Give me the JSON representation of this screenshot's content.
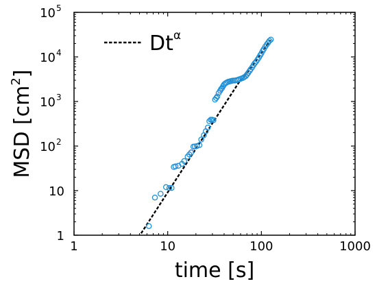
{
  "chart_data": {
    "type": "scatter",
    "xlabel": "time [s]",
    "ylabel_main": "MSD [cm",
    "ylabel_sup": "2",
    "ylabel_end": "]",
    "x_scale": "log",
    "y_scale": "log",
    "xlim": [
      1,
      1000
    ],
    "ylim": [
      1,
      100000
    ],
    "grid": false,
    "legend_placement": "top-left",
    "x_ticks": [
      {
        "value": 1,
        "label": "1"
      },
      {
        "value": 10,
        "label": "10"
      },
      {
        "value": 100,
        "label": "100"
      },
      {
        "value": 1000,
        "label": "1000"
      }
    ],
    "y_ticks": [
      {
        "value": 1,
        "base": "1",
        "exp": ""
      },
      {
        "value": 10,
        "base": "10",
        "exp": ""
      },
      {
        "value": 100,
        "base": "10",
        "exp": "2"
      },
      {
        "value": 1000,
        "base": "10",
        "exp": "3"
      },
      {
        "value": 10000,
        "base": "10",
        "exp": "4"
      },
      {
        "value": 100000,
        "base": "10",
        "exp": "5"
      }
    ],
    "colors": {
      "markers": "#1f8fd6",
      "fit_line": "#000000"
    },
    "fit": {
      "name_base": "Dt",
      "name_sup": "α",
      "x": [
        5.2,
        57,
        80,
        125
      ],
      "y": [
        1.1,
        2600,
        6200,
        24000
      ]
    },
    "scatter": {
      "x": [
        6.3,
        7.3,
        8.4,
        9.6,
        10.4,
        11.0,
        11.6,
        12.1,
        13.0,
        14.2,
        15.0,
        16.3,
        17.0,
        17.8,
        18.8,
        19.5,
        20.5,
        21.8,
        22.8,
        24.3,
        25.5,
        26.8,
        27.8,
        28.8,
        29.8,
        30.8,
        32.0,
        33.0,
        33.8,
        35.0,
        36.3,
        37.2,
        38.0,
        39.0,
        40.0,
        41.2,
        42.5,
        44.0,
        45.5,
        47.0,
        48.5,
        50.0,
        52.0,
        54.0,
        56.0,
        58.0,
        60.5,
        63.0,
        65.5,
        68.0,
        70.0,
        72.5,
        75.0,
        77.0,
        80.0,
        82.5,
        85.0,
        88.0,
        91.0,
        94.0,
        97.0,
        100.0,
        103.0,
        106.0,
        110.0,
        114.0,
        118.0,
        122.0,
        126.0
      ],
      "y": [
        1.6,
        7.0,
        8.5,
        12,
        11.5,
        11.5,
        34,
        35,
        36,
        40,
        46,
        58,
        65,
        72,
        97,
        98,
        100,
        105,
        140,
        175,
        215,
        260,
        360,
        390,
        390,
        380,
        1100,
        1200,
        1300,
        1550,
        1750,
        1900,
        2000,
        2200,
        2400,
        2550,
        2650,
        2750,
        2800,
        2850,
        2900,
        2950,
        2950,
        3000,
        3050,
        3150,
        3250,
        3350,
        3500,
        3700,
        4000,
        4400,
        4900,
        5300,
        5900,
        6600,
        7200,
        7900,
        8700,
        9700,
        10800,
        12000,
        13500,
        15000,
        17000,
        19000,
        21000,
        23000,
        24500
      ]
    }
  }
}
